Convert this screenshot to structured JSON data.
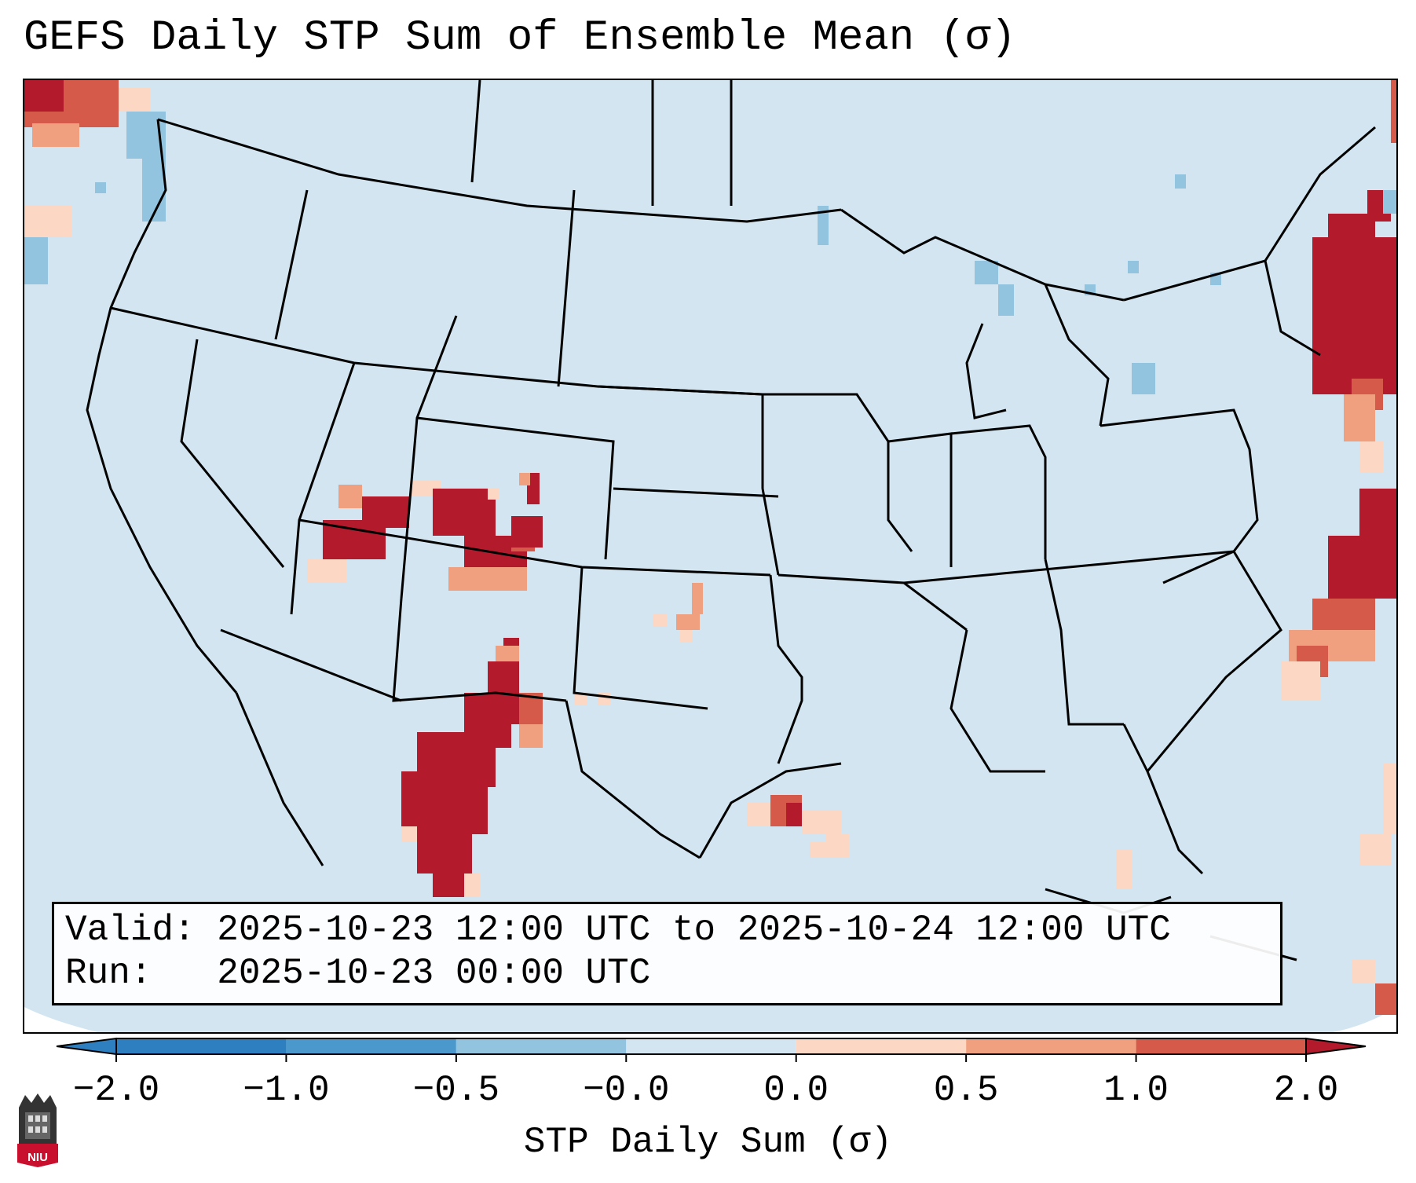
{
  "title": "GEFS Daily STP Sum of Ensemble Mean (σ)",
  "info": {
    "valid_label": "Valid:",
    "valid_value": "2025-10-23 12:00 UTC to 2025-10-24 12:00 UTC",
    "run_label": "Run:",
    "run_value": "2025-10-23 00:00 UTC"
  },
  "colorbar": {
    "label": "STP Daily Sum (σ)",
    "ticks": [
      "−2.0",
      "−1.0",
      "−0.5",
      "−0.0",
      "0.0",
      "0.5",
      "1.0",
      "2.0"
    ],
    "colors": [
      "#2d7fc0",
      "#4a98cc",
      "#92c3df",
      "#d2e5f0",
      "#fbd7c4",
      "#f0a07f",
      "#d65a4a",
      "#b31b2c"
    ],
    "extend": "both"
  },
  "map": {
    "region": "Contiguous United States",
    "background_color": "#d2e5f0",
    "positive_areas": [
      {
        "area": "Nevada/Utah/Arizona border",
        "level": 2.0
      },
      {
        "area": "Southern Utah / Four Corners",
        "level": 2.0
      },
      {
        "area": "Northwest Mexico (Chihuahua)",
        "level": 2.0
      },
      {
        "area": "Southern New Mexico / West Texas",
        "level": 2.0
      },
      {
        "area": "Texas panhandle",
        "level": 0.5
      },
      {
        "area": "Northwest Gulf of Mexico",
        "level": 1.0
      },
      {
        "area": "New England / Gulf of Maine",
        "level": 2.0
      },
      {
        "area": "Western Atlantic off Carolinas",
        "level": 2.0
      },
      {
        "area": "Pacific off British Columbia",
        "level": 1.0
      }
    ],
    "negative_areas": [
      {
        "area": "Washington coast",
        "level": -0.5
      },
      {
        "area": "Lake Michigan / Lake Huron",
        "level": -0.5
      },
      {
        "area": "Central Pennsylvania",
        "level": -0.5
      }
    ]
  },
  "logo": {
    "text": "NIU",
    "color": "#c8102e"
  }
}
